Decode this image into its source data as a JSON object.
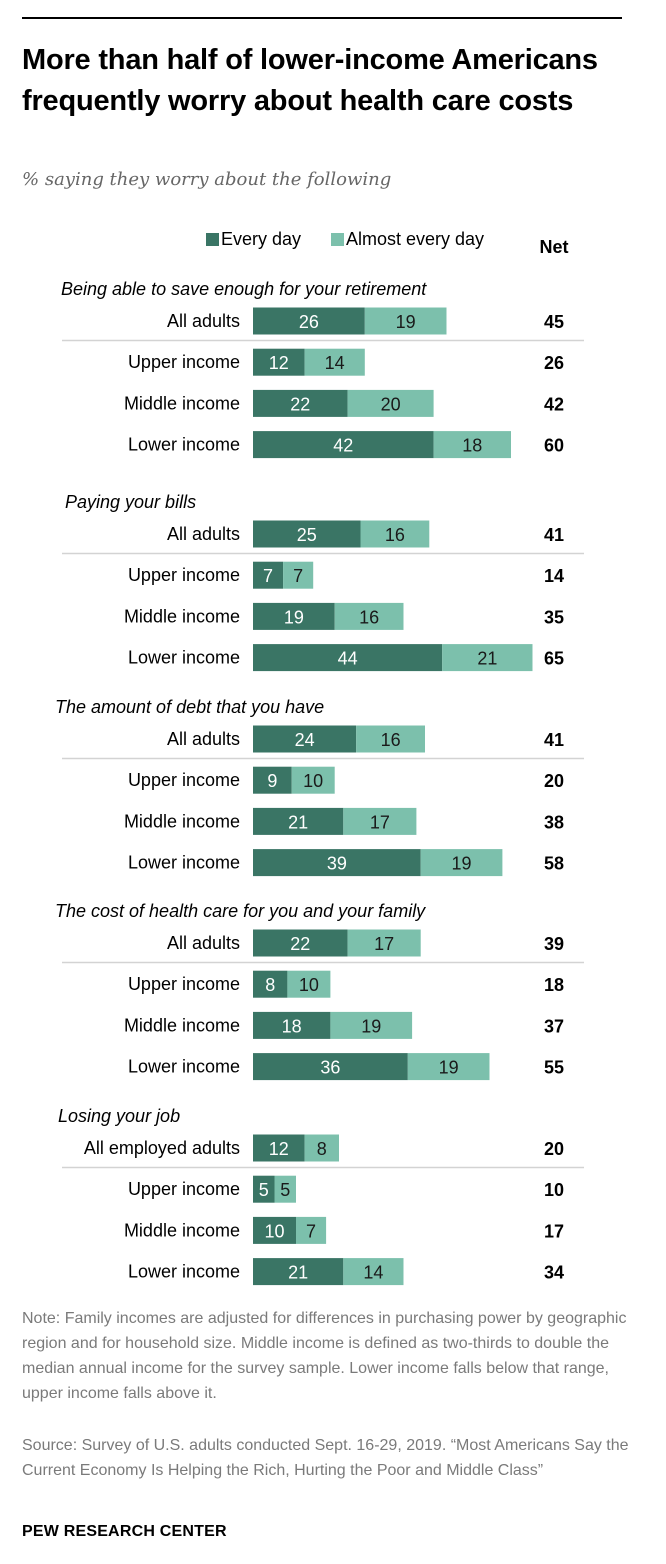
{
  "title": "More than half of lower-income Americans frequently worry about health care costs",
  "subtitle": "% saying they worry about the following",
  "chart_data": {
    "type": "bar",
    "orientation": "horizontal",
    "stacked": true,
    "legend": [
      "Every day",
      "Almost every day"
    ],
    "legend_position": "top",
    "net_label": "Net",
    "colors": {
      "every_day": "#3a7565",
      "almost_every_day": "#7cc0ac",
      "divider": "#d3d3d3"
    },
    "groups": [
      {
        "title": "Being able to save enough for your retirement",
        "rows": [
          {
            "label": "All adults",
            "every_day": 26,
            "almost_every_day": 19,
            "net": 45
          },
          {
            "label": "Upper income",
            "every_day": 12,
            "almost_every_day": 14,
            "net": 26
          },
          {
            "label": "Middle income",
            "every_day": 22,
            "almost_every_day": 20,
            "net": 42
          },
          {
            "label": "Lower income",
            "every_day": 42,
            "almost_every_day": 18,
            "net": 60
          }
        ]
      },
      {
        "title": "Paying your bills",
        "rows": [
          {
            "label": "All adults",
            "every_day": 25,
            "almost_every_day": 16,
            "net": 41
          },
          {
            "label": "Upper income",
            "every_day": 7,
            "almost_every_day": 7,
            "net": 14
          },
          {
            "label": "Middle income",
            "every_day": 19,
            "almost_every_day": 16,
            "net": 35
          },
          {
            "label": "Lower income",
            "every_day": 44,
            "almost_every_day": 21,
            "net": 65
          }
        ]
      },
      {
        "title": "The amount of debt that you have",
        "rows": [
          {
            "label": "All adults",
            "every_day": 24,
            "almost_every_day": 16,
            "net": 41
          },
          {
            "label": "Upper income",
            "every_day": 9,
            "almost_every_day": 10,
            "net": 20
          },
          {
            "label": "Middle income",
            "every_day": 21,
            "almost_every_day": 17,
            "net": 38
          },
          {
            "label": "Lower income",
            "every_day": 39,
            "almost_every_day": 19,
            "net": 58
          }
        ]
      },
      {
        "title": "The cost of health care for you and your family",
        "rows": [
          {
            "label": "All adults",
            "every_day": 22,
            "almost_every_day": 17,
            "net": 39
          },
          {
            "label": "Upper income",
            "every_day": 8,
            "almost_every_day": 10,
            "net": 18
          },
          {
            "label": "Middle income",
            "every_day": 18,
            "almost_every_day": 19,
            "net": 37
          },
          {
            "label": "Lower income",
            "every_day": 36,
            "almost_every_day": 19,
            "net": 55
          }
        ]
      },
      {
        "title": "Losing your job",
        "rows": [
          {
            "label": "All employed adults",
            "every_day": 12,
            "almost_every_day": 8,
            "net": 20
          },
          {
            "label": "Upper income",
            "every_day": 5,
            "almost_every_day": 5,
            "net": 10
          },
          {
            "label": "Middle income",
            "every_day": 10,
            "almost_every_day": 7,
            "net": 17
          },
          {
            "label": "Lower income",
            "every_day": 21,
            "almost_every_day": 14,
            "net": 34
          }
        ]
      }
    ]
  },
  "note": "Note: Family incomes are adjusted for differences in purchasing power by geographic region and for household size. Middle income is defined as two-thirds to double the median annual income for the survey sample. Lower income falls below that range, upper income falls above it.",
  "source": "Source: Survey of U.S. adults conducted Sept. 16-29, 2019. “Most Americans Say the Current Economy Is Helping the Rich, Hurting the Poor and Middle Class”",
  "footer": "PEW RESEARCH CENTER"
}
